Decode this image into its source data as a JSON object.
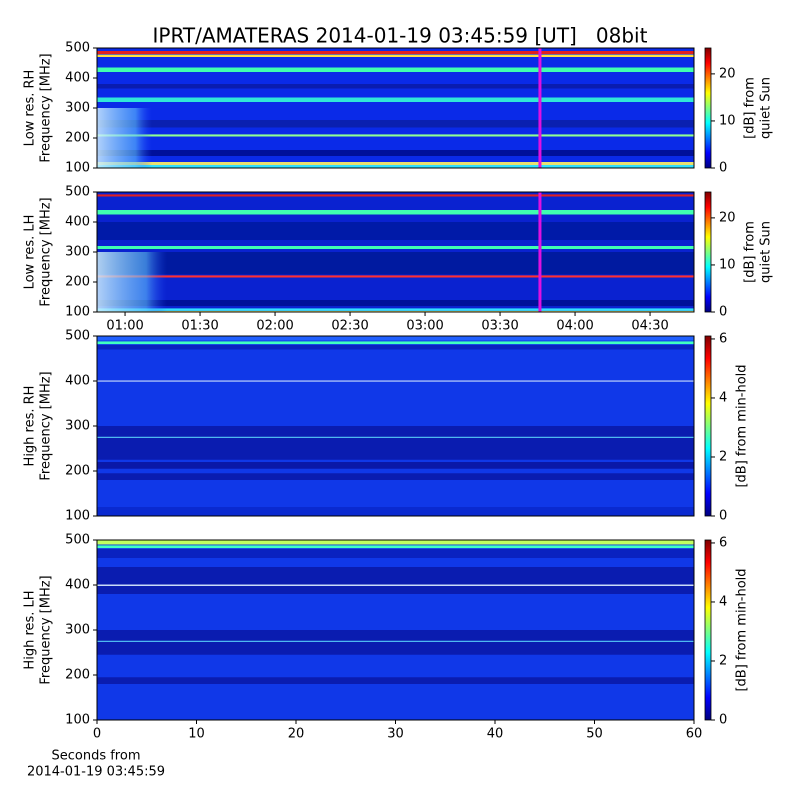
{
  "chart_data": [
    {
      "type": "spectrogram",
      "title": "IPRT/AMATERAS 2014-01-19 03:45:59 [UT]   08bit",
      "ylabel": [
        "Low res. RH",
        "Frequency [MHz]"
      ],
      "ylim": [
        100,
        500
      ],
      "yticks": [
        100,
        200,
        300,
        400,
        500
      ],
      "xlim": [
        0.813,
        4.793
      ],
      "marker": {
        "x": 3.766,
        "color": "#e010e0"
      },
      "colorbar": {
        "label": [
          "[dB] from",
          "quiet Sun"
        ],
        "lim": [
          0,
          25.5
        ],
        "ticks": [
          0,
          10,
          20
        ]
      }
    },
    {
      "type": "spectrogram",
      "ylabel": [
        "Low res. LH",
        "Frequency [MHz]"
      ],
      "ylim": [
        100,
        500
      ],
      "yticks": [
        100,
        200,
        300,
        400,
        500
      ],
      "xlim": [
        0.813,
        4.793
      ],
      "marker": {
        "x": 3.766,
        "color": "#e010e0"
      },
      "xticks": [
        {
          "value": 1,
          "label": "01:00"
        },
        {
          "value": 1.5,
          "label": "01:30"
        },
        {
          "value": 2,
          "label": "02:00"
        },
        {
          "value": 2.5,
          "label": "02:30"
        },
        {
          "value": 3,
          "label": "03:00"
        },
        {
          "value": 3.5,
          "label": "03:30"
        },
        {
          "value": 4,
          "label": "04:00"
        },
        {
          "value": 4.5,
          "label": "04:30"
        }
      ],
      "colorbar": {
        "label": [
          "[dB] from",
          "quiet Sun"
        ],
        "lim": [
          0,
          25.5
        ],
        "ticks": [
          0,
          10,
          20
        ]
      }
    },
    {
      "type": "spectrogram",
      "ylabel": [
        "High res. RH",
        "Frequency [MHz]"
      ],
      "ylim": [
        100,
        500
      ],
      "yticks": [
        100,
        200,
        300,
        400,
        500
      ],
      "xlim": [
        0,
        60
      ],
      "colorbar": {
        "label": [
          "[dB] from min-hold"
        ],
        "lim": [
          0,
          6.1
        ],
        "ticks": [
          0,
          2,
          4,
          6
        ]
      }
    },
    {
      "type": "spectrogram",
      "ylabel": [
        "High res. LH",
        "Frequency [MHz]"
      ],
      "ylim": [
        100,
        500
      ],
      "yticks": [
        100,
        200,
        300,
        400,
        500
      ],
      "xlim": [
        0,
        60
      ],
      "xticks": [
        0,
        10,
        20,
        30,
        40,
        50,
        60
      ],
      "xlabel": [
        "Seconds from",
        "2014-01-19 03:45:59"
      ],
      "colorbar": {
        "label": [
          "[dB] from min-hold"
        ],
        "lim": [
          0,
          6.1
        ],
        "ticks": [
          0,
          2,
          4,
          6
        ]
      }
    }
  ]
}
